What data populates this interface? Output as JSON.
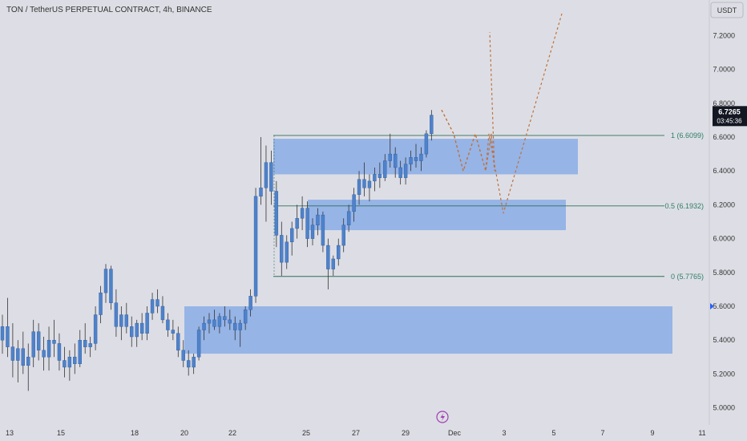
{
  "header": {
    "title": "TON / TetherUS PERPETUAL CONTRACT, 4h, BINANCE"
  },
  "currency": "USDT",
  "price_axis": {
    "labels": [
      "7.2000",
      "7.0000",
      "6.8000",
      "6.6000",
      "6.4000",
      "6.2000",
      "6.0000",
      "5.8000",
      "5.6000",
      "5.4000",
      "5.2000",
      "5.0000"
    ]
  },
  "time_axis": {
    "labels": [
      "13",
      "15",
      "18",
      "20",
      "22",
      "25",
      "27",
      "29",
      "Dec",
      "3",
      "5",
      "7",
      "9",
      "11"
    ]
  },
  "current_price": {
    "price": "6.7265",
    "countdown": "03:45:36",
    "value": 6.7265
  },
  "fib_levels": [
    {
      "label": "1 (6.6099)",
      "value": 6.6099
    },
    {
      "label": "0.5 (6.1932)",
      "value": 6.1932
    },
    {
      "label": "0 (5.7765)",
      "value": 5.7765
    }
  ],
  "zones": [
    {
      "top": 6.59,
      "bottom": 6.38
    },
    {
      "top": 6.23,
      "bottom": 6.05
    },
    {
      "top": 5.6,
      "bottom": 5.32
    }
  ],
  "colors": {
    "background": "#dddee5",
    "candle": "#4f82c8",
    "wick": "#333333",
    "zone": "#7ea6e6",
    "fib_line": "#2e6f5a",
    "fib_label": "#2e7d68",
    "projection": "#c0703a",
    "price_tag": "#131722",
    "axis_text": "#333333"
  },
  "icons": {
    "event_marker": "lightning-icon"
  },
  "chart_data": {
    "type": "candlestick",
    "title": "TON / TetherUS PERPETUAL CONTRACT, 4h, BINANCE",
    "interval": "4h",
    "ylim": [
      4.9,
      7.36
    ],
    "ytick_values": [
      7.2,
      7.0,
      6.8,
      6.6,
      6.4,
      6.2,
      6.0,
      5.8,
      5.6,
      5.4,
      5.2,
      5.0
    ],
    "last_price": 6.7265,
    "xtick_labels": [
      "13",
      "15",
      "18",
      "20",
      "22",
      "25",
      "27",
      "29",
      "Dec",
      "3",
      "5",
      "7",
      "9",
      "11"
    ],
    "ohlc": [
      [
        5.4,
        5.55,
        5.32,
        5.48
      ],
      [
        5.48,
        5.65,
        5.3,
        5.36
      ],
      [
        5.36,
        5.5,
        5.18,
        5.28
      ],
      [
        5.28,
        5.4,
        5.15,
        5.35
      ],
      [
        5.35,
        5.45,
        5.2,
        5.25
      ],
      [
        5.25,
        5.38,
        5.1,
        5.3
      ],
      [
        5.3,
        5.52,
        5.24,
        5.45
      ],
      [
        5.45,
        5.5,
        5.28,
        5.34
      ],
      [
        5.34,
        5.42,
        5.22,
        5.3
      ],
      [
        5.3,
        5.48,
        5.22,
        5.4
      ],
      [
        5.4,
        5.52,
        5.3,
        5.38
      ],
      [
        5.38,
        5.44,
        5.22,
        5.28
      ],
      [
        5.28,
        5.36,
        5.18,
        5.24
      ],
      [
        5.24,
        5.34,
        5.16,
        5.3
      ],
      [
        5.3,
        5.38,
        5.2,
        5.26
      ],
      [
        5.26,
        5.46,
        5.24,
        5.4
      ],
      [
        5.4,
        5.5,
        5.32,
        5.36
      ],
      [
        5.36,
        5.42,
        5.3,
        5.38
      ],
      [
        5.38,
        5.6,
        5.34,
        5.55
      ],
      [
        5.55,
        5.72,
        5.5,
        5.68
      ],
      [
        5.68,
        5.85,
        5.62,
        5.82
      ],
      [
        5.82,
        5.84,
        5.58,
        5.62
      ],
      [
        5.62,
        5.7,
        5.42,
        5.48
      ],
      [
        5.48,
        5.6,
        5.4,
        5.55
      ],
      [
        5.55,
        5.62,
        5.44,
        5.48
      ],
      [
        5.48,
        5.54,
        5.36,
        5.42
      ],
      [
        5.42,
        5.52,
        5.36,
        5.5
      ],
      [
        5.5,
        5.56,
        5.4,
        5.44
      ],
      [
        5.44,
        5.6,
        5.4,
        5.56
      ],
      [
        5.56,
        5.68,
        5.52,
        5.64
      ],
      [
        5.64,
        5.7,
        5.56,
        5.6
      ],
      [
        5.6,
        5.66,
        5.5,
        5.52
      ],
      [
        5.52,
        5.56,
        5.42,
        5.46
      ],
      [
        5.46,
        5.52,
        5.4,
        5.44
      ],
      [
        5.44,
        5.48,
        5.3,
        5.34
      ],
      [
        5.34,
        5.4,
        5.24,
        5.28
      ],
      [
        5.28,
        5.34,
        5.19,
        5.24
      ],
      [
        5.24,
        5.32,
        5.2,
        5.3
      ],
      [
        5.3,
        5.48,
        5.28,
        5.46
      ],
      [
        5.46,
        5.54,
        5.4,
        5.5
      ],
      [
        5.5,
        5.56,
        5.44,
        5.52
      ],
      [
        5.52,
        5.58,
        5.46,
        5.48
      ],
      [
        5.48,
        5.56,
        5.44,
        5.54
      ],
      [
        5.54,
        5.6,
        5.48,
        5.52
      ],
      [
        5.52,
        5.58,
        5.46,
        5.5
      ],
      [
        5.5,
        5.54,
        5.4,
        5.46
      ],
      [
        5.46,
        5.52,
        5.36,
        5.5
      ],
      [
        5.5,
        5.6,
        5.46,
        5.58
      ],
      [
        5.58,
        5.7,
        5.54,
        5.66
      ],
      [
        5.66,
        6.3,
        5.62,
        6.25
      ],
      [
        6.25,
        6.6,
        6.2,
        6.3
      ],
      [
        6.3,
        6.55,
        6.1,
        6.45
      ],
      [
        6.45,
        6.52,
        6.2,
        6.28
      ],
      [
        6.28,
        6.34,
        5.95,
        6.02
      ],
      [
        6.02,
        6.1,
        5.78,
        5.86
      ],
      [
        5.86,
        6.02,
        5.82,
        5.98
      ],
      [
        5.98,
        6.1,
        5.9,
        6.06
      ],
      [
        6.06,
        6.2,
        6.0,
        6.12
      ],
      [
        6.12,
        6.25,
        6.05,
        6.18
      ],
      [
        6.18,
        6.22,
        5.95,
        6.0
      ],
      [
        6.0,
        6.12,
        5.96,
        6.08
      ],
      [
        6.08,
        6.18,
        6.02,
        6.14
      ],
      [
        6.14,
        6.16,
        5.92,
        5.96
      ],
      [
        5.96,
        6.0,
        5.7,
        5.82
      ],
      [
        5.82,
        5.9,
        5.78,
        5.88
      ],
      [
        5.88,
        6.0,
        5.84,
        5.96
      ],
      [
        5.96,
        6.12,
        5.92,
        6.08
      ],
      [
        6.08,
        6.2,
        6.04,
        6.16
      ],
      [
        6.16,
        6.3,
        6.1,
        6.26
      ],
      [
        6.26,
        6.4,
        6.2,
        6.35
      ],
      [
        6.35,
        6.45,
        6.25,
        6.3
      ],
      [
        6.3,
        6.38,
        6.22,
        6.34
      ],
      [
        6.34,
        6.42,
        6.28,
        6.38
      ],
      [
        6.38,
        6.45,
        6.3,
        6.36
      ],
      [
        6.36,
        6.5,
        6.34,
        6.46
      ],
      [
        6.46,
        6.62,
        6.42,
        6.5
      ],
      [
        6.5,
        6.54,
        6.36,
        6.42
      ],
      [
        6.42,
        6.46,
        6.32,
        6.36
      ],
      [
        6.36,
        6.48,
        6.32,
        6.44
      ],
      [
        6.44,
        6.52,
        6.4,
        6.48
      ],
      [
        6.48,
        6.56,
        6.42,
        6.46
      ],
      [
        6.46,
        6.54,
        6.4,
        6.5
      ],
      [
        6.5,
        6.64,
        6.48,
        6.62
      ],
      [
        6.62,
        6.76,
        6.58,
        6.73
      ]
    ],
    "fib_levels": [
      {
        "ratio": 1,
        "value": 6.6099
      },
      {
        "ratio": 0.5,
        "value": 6.1932
      },
      {
        "ratio": 0,
        "value": 5.7765
      }
    ],
    "zones": [
      {
        "top": 6.59,
        "bottom": 6.38
      },
      {
        "top": 6.23,
        "bottom": 6.05
      },
      {
        "top": 5.6,
        "bottom": 5.32
      }
    ],
    "projections": [
      [
        6.76,
        6.62,
        6.4,
        6.62,
        6.4,
        6.62,
        6.4,
        7.22
      ],
      [
        6.76,
        6.62,
        6.4,
        6.62,
        6.4,
        6.62,
        6.15,
        7.33
      ]
    ]
  }
}
